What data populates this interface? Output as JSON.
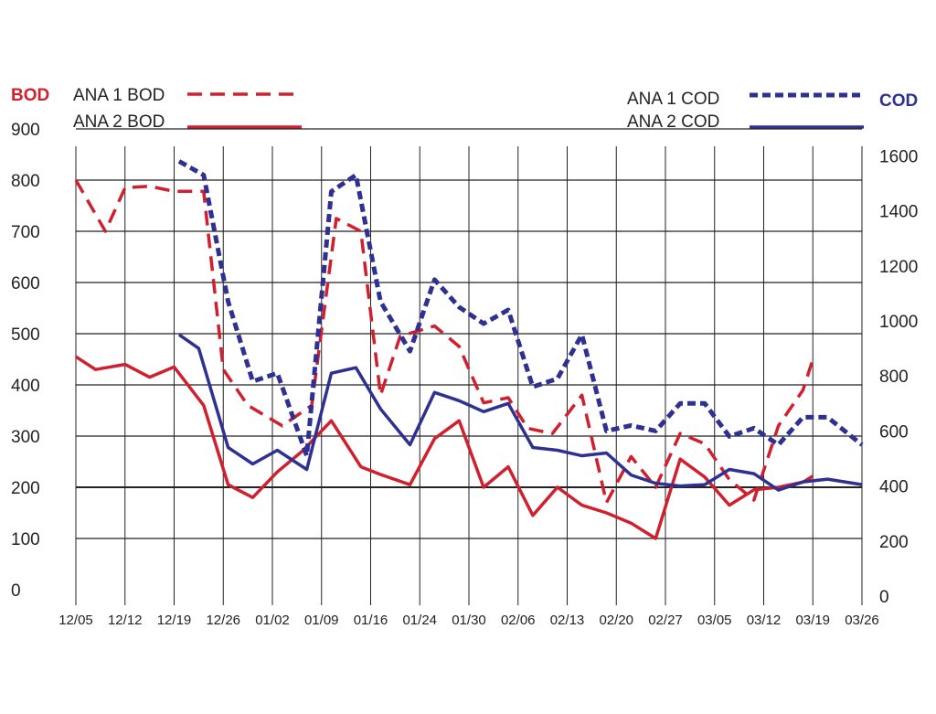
{
  "colors": {
    "bod": "#d0202e",
    "cod": "#2e3192",
    "grid": "#222222",
    "text": "#222222"
  },
  "chart_data": {
    "type": "line",
    "left_axis_title": "BOD",
    "right_axis_title": "COD",
    "left_axis": {
      "ylim": [
        0,
        900
      ],
      "ticks": [
        0,
        100,
        200,
        300,
        400,
        500,
        600,
        700,
        800,
        900
      ]
    },
    "right_axis": {
      "ylim": [
        0,
        1600
      ],
      "ticks": [
        0,
        200,
        400,
        600,
        800,
        1000,
        1200,
        1400,
        1600
      ]
    },
    "x_range": [
      0,
      16
    ],
    "x_ticks": [
      "12/05",
      "12/12",
      "12/19",
      "12/26",
      "01/02",
      "01/09",
      "01/16",
      "01/24",
      "01/30",
      "02/06",
      "02/13",
      "02/20",
      "02/27",
      "03/05",
      "03/12",
      "03/19",
      "03/26"
    ],
    "grid": true,
    "series": [
      {
        "name": "ANA 1 BOD",
        "axis": "left",
        "style": "dashed",
        "color": "#d0202e",
        "x": [
          0,
          0.6,
          1,
          1.5,
          2,
          2.6,
          3,
          3.5,
          4.2,
          4.8,
          5.3,
          5.8,
          6.2,
          6.6,
          7.3,
          7.8,
          8.3,
          8.8,
          9.2,
          9.7,
          10.3,
          10.8,
          11.3,
          11.8,
          12.3,
          12.8,
          13.3,
          13.8,
          14.3,
          14.8,
          15.0
        ],
        "y": [
          800,
          700,
          785,
          788,
          778,
          778,
          430,
          360,
          320,
          360,
          725,
          700,
          380,
          495,
          515,
          475,
          365,
          375,
          315,
          305,
          380,
          170,
          260,
          200,
          305,
          285,
          215,
          175,
          320,
          390,
          450
        ]
      },
      {
        "name": "ANA 2 BOD",
        "axis": "left",
        "style": "solid",
        "color": "#d0202e",
        "x": [
          0,
          0.4,
          1,
          1.5,
          2,
          2.6,
          3.1,
          3.6,
          4.1,
          4.6,
          5.2,
          5.8,
          6.2,
          6.8,
          7.3,
          7.8,
          8.3,
          8.8,
          9.3,
          9.8,
          10.3,
          10.8,
          11.3,
          11.8,
          12.3,
          12.8,
          13.3,
          13.8,
          14.3,
          14.8,
          15.0
        ],
        "y": [
          455,
          430,
          440,
          415,
          435,
          360,
          205,
          180,
          230,
          270,
          330,
          240,
          225,
          205,
          295,
          330,
          200,
          240,
          145,
          200,
          165,
          150,
          130,
          100,
          255,
          220,
          165,
          195,
          200,
          210,
          222
        ]
      },
      {
        "name": "ANA 1 COD",
        "axis": "right",
        "style": "dotted",
        "color": "#2e3192",
        "x": [
          2.1,
          2.6,
          3.1,
          3.6,
          4.1,
          4.7,
          5.2,
          5.7,
          6.2,
          6.8,
          7.3,
          7.8,
          8.3,
          8.8,
          9.3,
          9.8,
          10.3,
          10.8,
          11.3,
          11.8,
          12.3,
          12.8,
          13.3,
          13.8,
          14.3,
          14.8,
          15.3,
          16.0
        ],
        "y": [
          1580,
          1530,
          1070,
          780,
          810,
          510,
          1470,
          1530,
          1070,
          890,
          1150,
          1050,
          990,
          1040,
          760,
          790,
          950,
          600,
          620,
          600,
          700,
          700,
          580,
          610,
          550,
          650,
          650,
          550
        ]
      },
      {
        "name": "ANA 2 COD",
        "axis": "right",
        "style": "solid",
        "color": "#2e3192",
        "x": [
          2.1,
          2.5,
          3.1,
          3.6,
          4.1,
          4.7,
          5.2,
          5.7,
          6.2,
          6.8,
          7.3,
          7.8,
          8.3,
          8.8,
          9.3,
          9.8,
          10.3,
          10.8,
          11.3,
          11.8,
          12.3,
          12.8,
          13.3,
          13.8,
          14.3,
          14.8,
          15.3,
          16.0
        ],
        "y": [
          950,
          900,
          540,
          480,
          530,
          460,
          810,
          830,
          680,
          550,
          740,
          710,
          670,
          700,
          540,
          530,
          510,
          520,
          440,
          410,
          400,
          405,
          460,
          445,
          385,
          415,
          425,
          405
        ]
      }
    ],
    "legend": [
      {
        "label": "ANA 1 BOD",
        "style": "dashed",
        "color": "#d0202e"
      },
      {
        "label": "ANA 2 BOD",
        "style": "solid",
        "color": "#d0202e"
      },
      {
        "label": "ANA 1 COD",
        "style": "dotted",
        "color": "#2e3192"
      },
      {
        "label": "ANA 2 COD",
        "style": "solid",
        "color": "#2e3192"
      }
    ]
  }
}
